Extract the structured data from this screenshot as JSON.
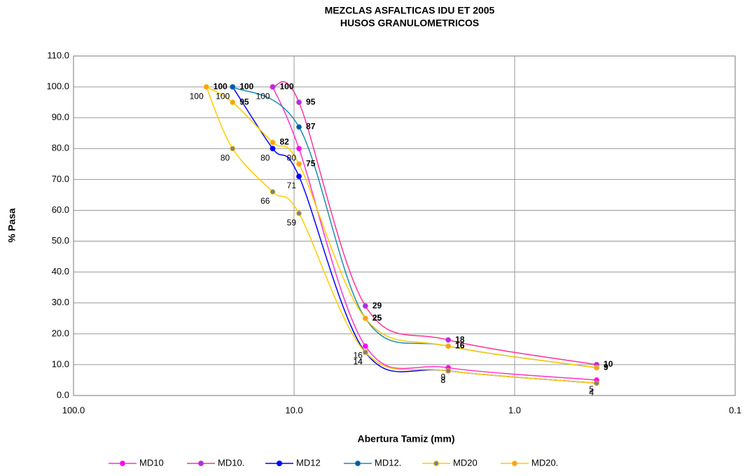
{
  "chart_data": {
    "type": "line",
    "title": "MEZCLAS ASFALTICAS IDU ET 2005",
    "subtitle": "HUSOS GRANULOMETRICOS",
    "x_label": "Abertura Tamiz (mm)",
    "y_label": "% Pasa",
    "log_x": true,
    "grid": true,
    "legend": "bottom",
    "xlim": [
      100,
      0.1
    ],
    "xticks": [
      {
        "value": 100,
        "label": "100.0"
      },
      {
        "value": 10,
        "label": "10.0"
      },
      {
        "value": 1,
        "label": "1.0"
      },
      {
        "value": 0.1,
        "label": "0.1"
      }
    ],
    "ylim": [
      0,
      110
    ],
    "yticks": [
      {
        "value": 0,
        "label": "0.0"
      },
      {
        "value": 10,
        "label": "10.0"
      },
      {
        "value": 20,
        "label": "20.0"
      },
      {
        "value": 30,
        "label": "30.0"
      },
      {
        "value": 40,
        "label": "40.0"
      },
      {
        "value": 50,
        "label": "50.0"
      },
      {
        "value": 60,
        "label": "60.0"
      },
      {
        "value": 70,
        "label": "70.0"
      },
      {
        "value": 80,
        "label": "80.0"
      },
      {
        "value": 90,
        "label": "90.0"
      },
      {
        "value": 100,
        "label": "100.0"
      },
      {
        "value": 110,
        "label": "110.0"
      }
    ],
    "series": [
      {
        "name": "MD10",
        "color": "#ff33cc",
        "marker_color": "#ff00ff",
        "x": [
          12.5,
          9.5,
          4.75,
          2.0,
          0.425
        ],
        "values": [
          100,
          80,
          16,
          9,
          5
        ]
      },
      {
        "name": "MD10.",
        "color": "#ff3399",
        "marker_color": "#9933ff",
        "x": [
          12.5,
          9.5,
          4.75,
          2.0,
          0.425
        ],
        "values": [
          100,
          95,
          29,
          18,
          10
        ]
      },
      {
        "name": "MD12",
        "color": "#0000ff",
        "marker_color": "#0000ff",
        "x": [
          19,
          12.5,
          9.5,
          4.75,
          2.0,
          0.425
        ],
        "values": [
          100,
          80,
          71,
          14,
          8,
          4
        ]
      },
      {
        "name": "MD12.",
        "color": "#1a8cb0",
        "marker_color": "#0055aa",
        "x": [
          19,
          9.5,
          4.75,
          2.0,
          0.425
        ],
        "values": [
          100,
          87,
          25,
          16,
          9
        ]
      },
      {
        "name": "MD20",
        "color": "#ffcc00",
        "marker_color": "#808080",
        "x": [
          25,
          19,
          12.5,
          9.5,
          4.75,
          2.0,
          0.425
        ],
        "values": [
          100,
          80,
          66,
          59,
          14,
          8,
          4
        ]
      },
      {
        "name": "MD20.",
        "color": "#ffcc00",
        "marker_color": "#ff9933",
        "x": [
          25,
          19,
          12.5,
          9.5,
          4.75,
          2.0,
          0.425
        ],
        "values": [
          100,
          95,
          82,
          75,
          25,
          16,
          9
        ]
      }
    ]
  }
}
